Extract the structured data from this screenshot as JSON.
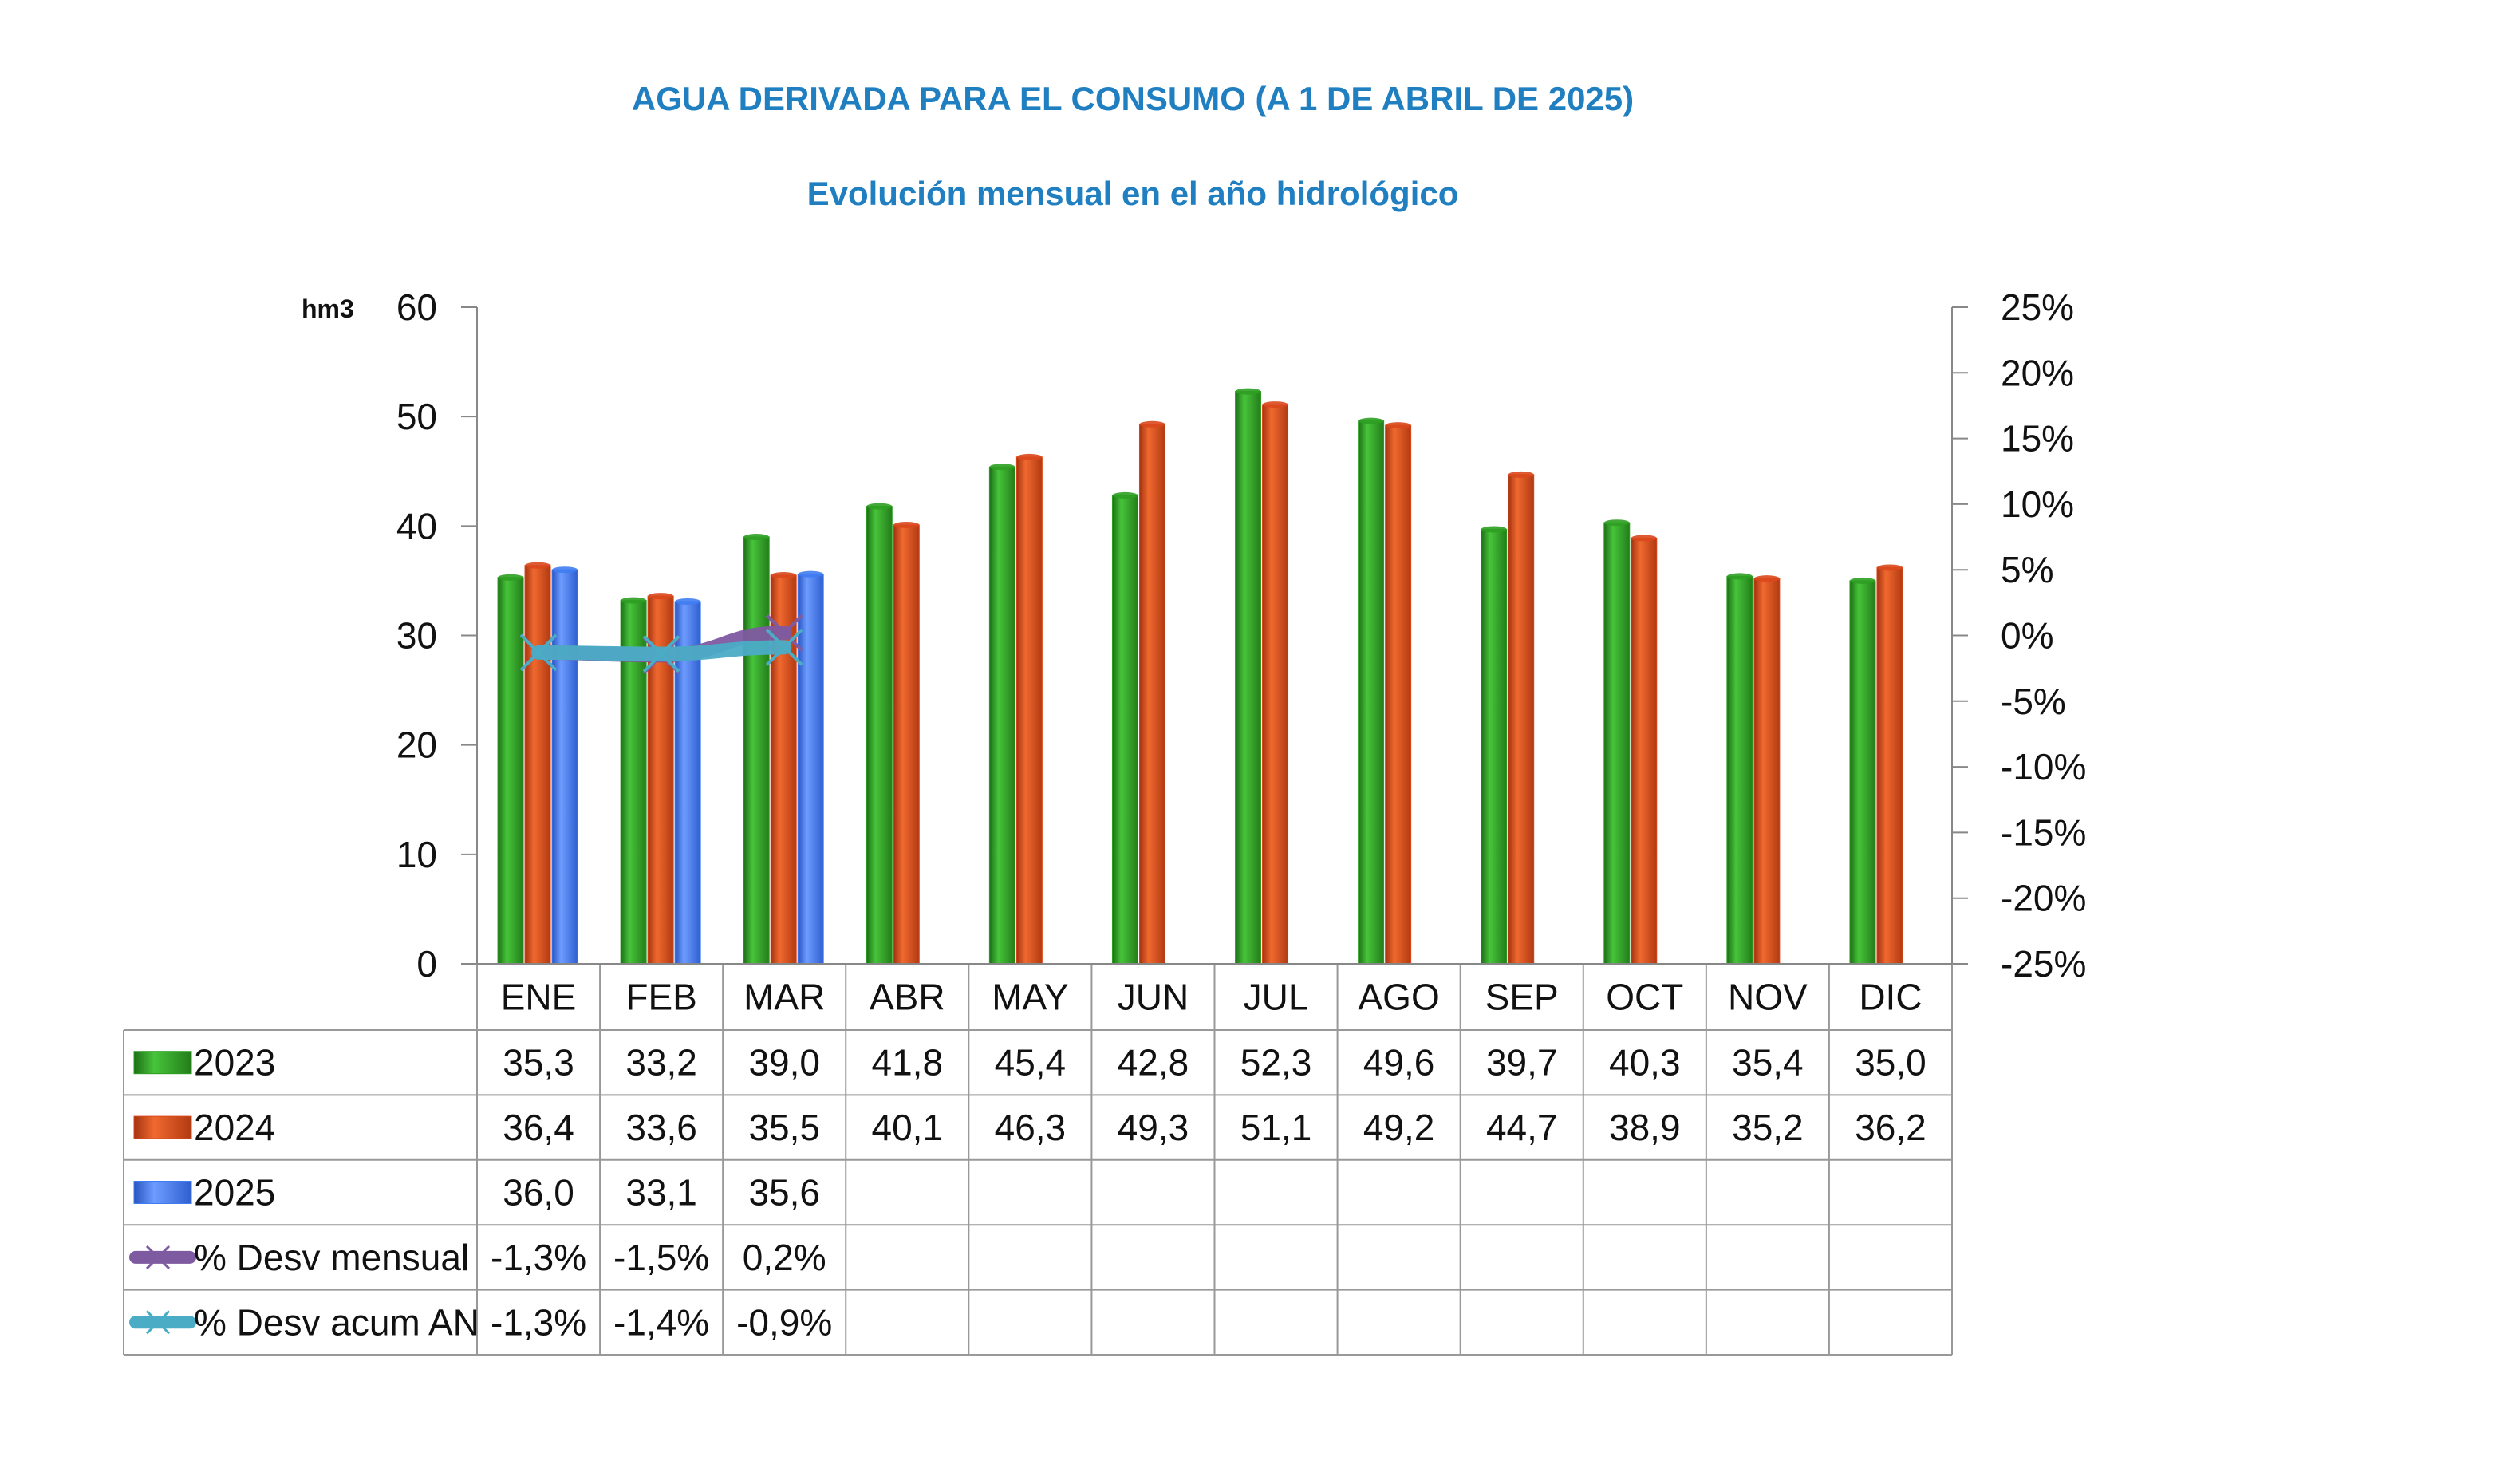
{
  "title": "AGUA DERIVADA PARA EL CONSUMO (A 1 DE ABRIL DE 2025)",
  "subtitle": "Evolución mensual en el año hidrológico",
  "chart_data": {
    "type": "bar",
    "title": "AGUA DERIVADA PARA EL CONSUMO (A 1 DE ABRIL DE 2025)",
    "subtitle": "Evolución mensual en el año hidrológico",
    "ylabel": "hm3",
    "ylim": [
      0,
      60
    ],
    "yticks": [
      "0",
      "10",
      "20",
      "30",
      "40",
      "50",
      "60"
    ],
    "y2lim": [
      -25,
      25
    ],
    "y2ticks": [
      "-25%",
      "-20%",
      "-15%",
      "-10%",
      "-5%",
      "0%",
      "5%",
      "10%",
      "15%",
      "20%",
      "25%"
    ],
    "grid": false,
    "legend": "data-table",
    "categories": [
      "ENE",
      "FEB",
      "MAR",
      "ABR",
      "MAY",
      "JUN",
      "JUL",
      "AGO",
      "SEP",
      "OCT",
      "NOV",
      "DIC"
    ],
    "series": [
      {
        "name": "2023",
        "type": "bar",
        "color": "#2e9e22",
        "values": [
          35.3,
          33.2,
          39.0,
          41.8,
          45.4,
          42.8,
          52.3,
          49.6,
          39.7,
          40.3,
          35.4,
          35.0
        ],
        "labels": [
          "35,3",
          "33,2",
          "39,0",
          "41,8",
          "45,4",
          "42,8",
          "52,3",
          "49,6",
          "39,7",
          "40,3",
          "35,4",
          "35,0"
        ]
      },
      {
        "name": "2024",
        "type": "bar",
        "color": "#d9481c",
        "values": [
          36.4,
          33.6,
          35.5,
          40.1,
          46.3,
          49.3,
          51.1,
          49.2,
          44.7,
          38.9,
          35.2,
          36.2
        ],
        "labels": [
          "36,4",
          "33,6",
          "35,5",
          "40,1",
          "46,3",
          "49,3",
          "51,1",
          "49,2",
          "44,7",
          "38,9",
          "35,2",
          "36,2"
        ]
      },
      {
        "name": "2025",
        "type": "bar",
        "color": "#3f7cf2",
        "values": [
          36.0,
          33.1,
          35.6,
          null,
          null,
          null,
          null,
          null,
          null,
          null,
          null,
          null
        ],
        "labels": [
          "36,0",
          "33,1",
          "35,6",
          "",
          "",
          "",
          "",
          "",
          "",
          "",
          "",
          ""
        ]
      },
      {
        "name": "% Desv mensual",
        "type": "line",
        "axis": "right",
        "color": "#7e5aa0",
        "values": [
          -1.3,
          -1.5,
          0.2,
          null,
          null,
          null,
          null,
          null,
          null,
          null,
          null,
          null
        ],
        "labels": [
          "-1,3%",
          "-1,5%",
          "0,2%",
          "",
          "",
          "",
          "",
          "",
          "",
          "",
          "",
          ""
        ]
      },
      {
        "name": "% Desv acum AN",
        "type": "line",
        "axis": "right",
        "color": "#4bacc6",
        "values": [
          -1.3,
          -1.4,
          -0.9,
          null,
          null,
          null,
          null,
          null,
          null,
          null,
          null,
          null
        ],
        "labels": [
          "-1,3%",
          "-1,4%",
          "-0,9%",
          "",
          "",
          "",
          "",
          "",
          "",
          "",
          "",
          ""
        ]
      }
    ]
  }
}
